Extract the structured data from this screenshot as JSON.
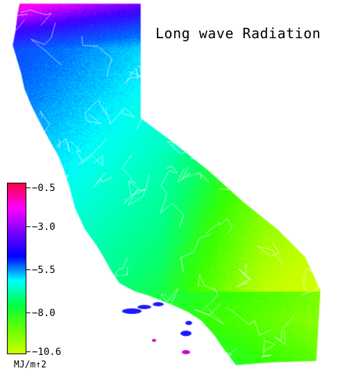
{
  "title": "Long wave Radiation",
  "legend": {
    "tick_labels": [
      "−0.5",
      "−3.0",
      "−5.5",
      "−8.0",
      "−10.6"
    ],
    "tick_values": [
      -0.5,
      -3.0,
      -5.5,
      -8.0,
      -10.6
    ],
    "units": "MJ/m↑2",
    "colors": [
      "#ff0040",
      "#ff00ff",
      "#7a00ff",
      "#0000ff",
      "#00ffff",
      "#00ff40",
      "#66ff00",
      "#ccff00"
    ]
  },
  "map": {
    "region": "California",
    "boundaries": "county lines"
  }
}
